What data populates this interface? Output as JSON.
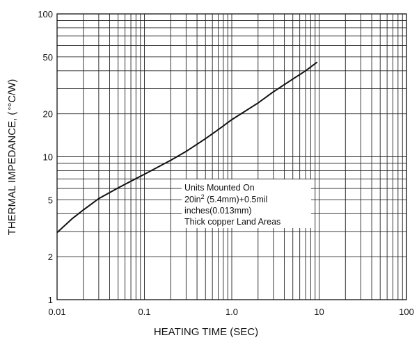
{
  "chart_data": {
    "type": "line",
    "title": "",
    "xlabel": "HEATING TIME (SEC)",
    "ylabel": "THERMAL IMPEDANCE, (",
    "ylabel_unit": "°C/W)",
    "x_scale": "log",
    "y_scale": "log",
    "xlim": [
      0.01,
      100
    ],
    "ylim": [
      1,
      100
    ],
    "grid": true,
    "x_ticks": [
      {
        "value": 0.01,
        "label": "0.01"
      },
      {
        "value": 0.1,
        "label": "0.1"
      },
      {
        "value": 1,
        "label": "1.0"
      },
      {
        "value": 10,
        "label": "10"
      },
      {
        "value": 100,
        "label": "100"
      }
    ],
    "y_ticks": [
      {
        "value": 1,
        "label": "1"
      },
      {
        "value": 2,
        "label": "2"
      },
      {
        "value": 5,
        "label": "5"
      },
      {
        "value": 10,
        "label": "10"
      },
      {
        "value": 20,
        "label": "20"
      },
      {
        "value": 50,
        "label": "50"
      },
      {
        "value": 100,
        "label": "100"
      }
    ],
    "series": [
      {
        "x": [
          0.01,
          0.015,
          0.02,
          0.03,
          0.05,
          0.07,
          0.1,
          0.2,
          0.3,
          0.5,
          0.7,
          1,
          2,
          3,
          5,
          7,
          9.5
        ],
        "y": [
          2.95,
          3.7,
          4.25,
          5.1,
          6.05,
          6.75,
          7.55,
          9.45,
          10.9,
          13.4,
          15.5,
          18.2,
          23.8,
          28.5,
          35.0,
          40.0,
          46.0
        ],
        "color": "#111111"
      }
    ],
    "annotation": {
      "line1": "Units Mounted On",
      "line2_a": "20in",
      "line2_sup": "2",
      "line2_b": " (5.4mm)+0.5mil",
      "line3": "inches(0.013mm)",
      "line4": "Thick copper Land Areas"
    }
  }
}
